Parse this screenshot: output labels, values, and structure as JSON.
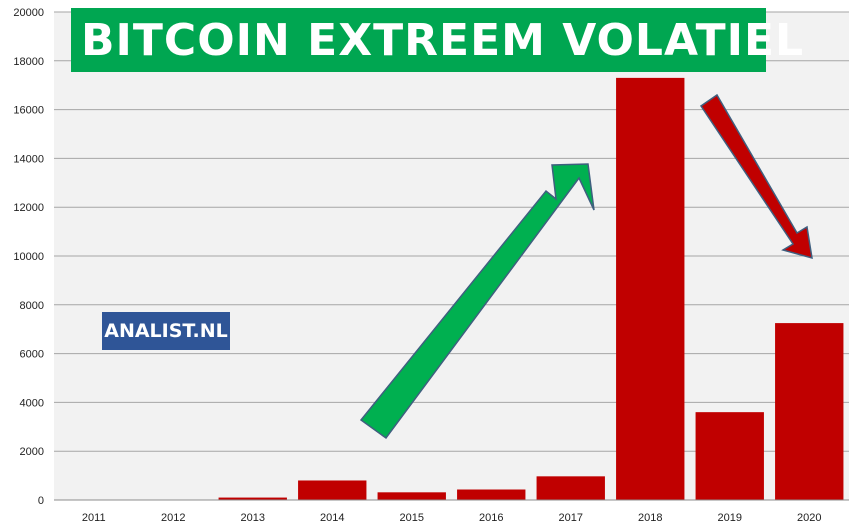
{
  "chart_data": {
    "type": "bar",
    "title": "BITCOIN EXTREEM VOLATIEL",
    "categories": [
      "2011",
      "2012",
      "2013",
      "2014",
      "2015",
      "2016",
      "2017",
      "2018",
      "2019",
      "2020"
    ],
    "values": [
      5,
      13,
      100,
      800,
      315,
      430,
      970,
      17300,
      3600,
      7250
    ],
    "ylim": [
      0,
      20000
    ],
    "yticks": [
      0,
      2000,
      4000,
      6000,
      8000,
      10000,
      12000,
      14000,
      16000,
      18000,
      20000
    ],
    "xlabel": "",
    "ylabel": "",
    "grid": true,
    "legend": "none"
  },
  "watermark": "ANALIST.NL",
  "colors": {
    "bar": "#c00000",
    "plot_background": "#f2f2f2",
    "banner": "#00a651",
    "up_arrow": "#00b050",
    "down_arrow": "#c00000",
    "watermark_background": "#2f5597",
    "gridline": "#a6a6a6"
  }
}
